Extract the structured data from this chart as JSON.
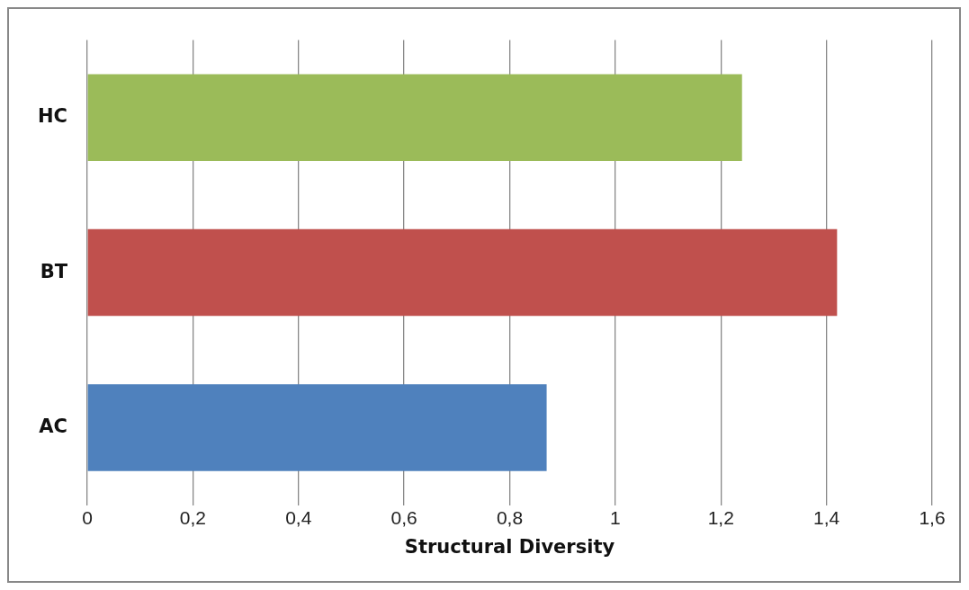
{
  "chart_data": {
    "type": "bar",
    "orientation": "horizontal",
    "categories": [
      "HC",
      "BT",
      "AC"
    ],
    "values": [
      1.24,
      1.42,
      0.87
    ],
    "colors": [
      "#9bbb59",
      "#c0504d",
      "#4f81bd"
    ],
    "xlabel": "Structural Diversity",
    "xlim": [
      0,
      1.6
    ],
    "xticks": [
      0,
      {
        "value": 0.2,
        "label": "0,2"
      },
      {
        "value": 0.4,
        "label": "0,4"
      },
      {
        "value": 0.6,
        "label": "0,6"
      },
      {
        "value": 0.8,
        "label": "0,8"
      },
      1,
      {
        "value": 1.2,
        "label": "1,2"
      },
      {
        "value": 1.4,
        "label": "1,4"
      },
      {
        "value": 1.6,
        "label": "1,6"
      }
    ],
    "grid": "x"
  }
}
